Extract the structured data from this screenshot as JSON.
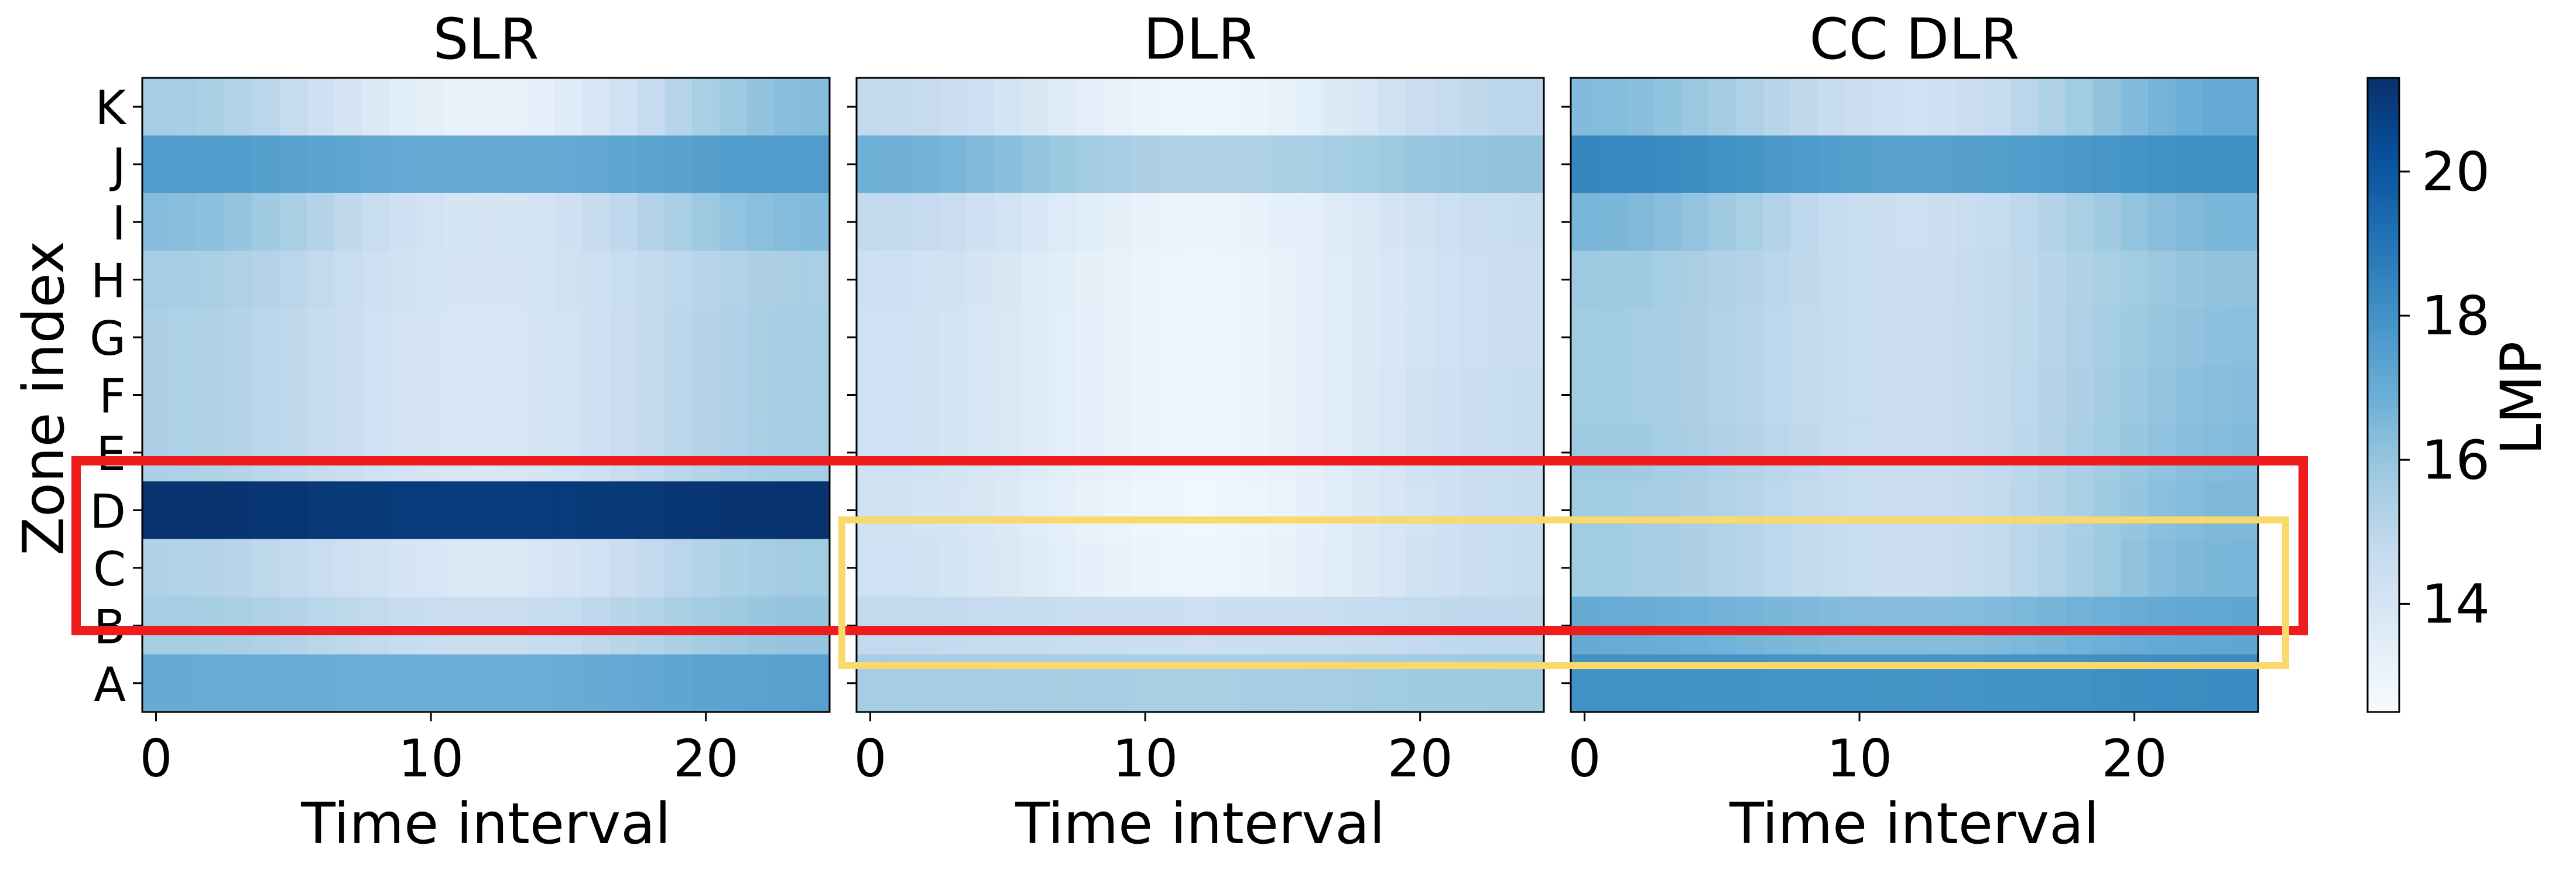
{
  "figure": {
    "ylabel": "Zone index",
    "zones": [
      "A",
      "B",
      "C",
      "D",
      "E",
      "F",
      "G",
      "H",
      "I",
      "J",
      "K"
    ],
    "xticks": [
      0,
      10,
      20
    ],
    "colorbar": {
      "label": "LMP",
      "ticks": [
        14,
        16,
        18,
        20
      ],
      "range": [
        12.5,
        21.3
      ]
    },
    "colors": {
      "red_box": "#ee1c1c",
      "yellow_box": "#f9d86c"
    }
  },
  "chart_data": [
    {
      "type": "heatmap",
      "title": "SLR",
      "xlabel": "Time interval",
      "ylabel": "Zone index",
      "x": [
        0,
        1,
        2,
        3,
        4,
        5,
        6,
        7,
        8,
        9,
        10,
        11,
        12,
        13,
        14,
        15,
        16,
        17,
        18,
        19,
        20,
        21,
        22,
        23,
        24
      ],
      "y": [
        "A",
        "B",
        "C",
        "D",
        "E",
        "F",
        "G",
        "H",
        "I",
        "J",
        "K"
      ],
      "zone_profiles": {
        "K": {
          "start": 15.6,
          "mid": 13.1,
          "end": 16.3
        },
        "J": {
          "start": 17.6,
          "mid": 17.0,
          "end": 17.6
        },
        "I": {
          "start": 16.3,
          "mid": 14.0,
          "end": 16.4
        },
        "H": {
          "start": 15.6,
          "mid": 14.0,
          "end": 15.5
        },
        "G": {
          "start": 15.4,
          "mid": 13.9,
          "end": 15.6
        },
        "F": {
          "start": 15.4,
          "mid": 13.9,
          "end": 15.6
        },
        "E": {
          "start": 15.4,
          "mid": 13.9,
          "end": 15.6
        },
        "D": {
          "start": 21.2,
          "mid": 20.9,
          "end": 21.2
        },
        "C": {
          "start": 15.3,
          "mid": 13.8,
          "end": 15.7
        },
        "B": {
          "start": 15.6,
          "mid": 14.5,
          "end": 16.0
        },
        "A": {
          "start": 17.0,
          "mid": 16.9,
          "end": 17.4
        }
      },
      "xlim": [
        -0.5,
        24.5
      ],
      "colorbar": "LMP"
    },
    {
      "type": "heatmap",
      "title": "DLR",
      "xlabel": "Time interval",
      "x": [
        0,
        1,
        2,
        3,
        4,
        5,
        6,
        7,
        8,
        9,
        10,
        11,
        12,
        13,
        14,
        15,
        16,
        17,
        18,
        19,
        20,
        21,
        22,
        23,
        24
      ],
      "y": [
        "A",
        "B",
        "C",
        "D",
        "E",
        "F",
        "G",
        "H",
        "I",
        "J",
        "K"
      ],
      "zone_profiles": {
        "K": {
          "start": 14.8,
          "mid": 12.9,
          "end": 15.0
        },
        "J": {
          "start": 16.8,
          "mid": 15.3,
          "end": 16.1
        },
        "I": {
          "start": 14.8,
          "mid": 13.0,
          "end": 14.6
        },
        "H": {
          "start": 14.4,
          "mid": 12.9,
          "end": 14.5
        },
        "G": {
          "start": 14.3,
          "mid": 12.9,
          "end": 14.5
        },
        "F": {
          "start": 14.3,
          "mid": 12.9,
          "end": 14.6
        },
        "E": {
          "start": 14.3,
          "mid": 12.9,
          "end": 14.6
        },
        "D": {
          "start": 14.2,
          "mid": 12.8,
          "end": 14.6
        },
        "C": {
          "start": 14.3,
          "mid": 12.9,
          "end": 14.6
        },
        "B": {
          "start": 14.8,
          "mid": 14.4,
          "end": 14.9
        },
        "A": {
          "start": 15.6,
          "mid": 15.5,
          "end": 15.8
        }
      },
      "xlim": [
        -0.5,
        24.5
      ]
    },
    {
      "type": "heatmap",
      "title": "CC DLR",
      "xlabel": "Time interval",
      "x": [
        0,
        1,
        2,
        3,
        4,
        5,
        6,
        7,
        8,
        9,
        10,
        11,
        12,
        13,
        14,
        15,
        16,
        17,
        18,
        19,
        20,
        21,
        22,
        23,
        24
      ],
      "y": [
        "A",
        "B",
        "C",
        "D",
        "E",
        "F",
        "G",
        "H",
        "I",
        "J",
        "K"
      ],
      "zone_profiles": {
        "K": {
          "start": 16.4,
          "mid": 14.3,
          "end": 17.1
        },
        "J": {
          "start": 18.4,
          "mid": 17.4,
          "end": 18.1
        },
        "I": {
          "start": 16.6,
          "mid": 14.4,
          "end": 16.6
        },
        "H": {
          "start": 15.8,
          "mid": 14.5,
          "end": 16.1
        },
        "G": {
          "start": 15.7,
          "mid": 14.5,
          "end": 16.2
        },
        "F": {
          "start": 15.7,
          "mid": 14.5,
          "end": 16.3
        },
        "E": {
          "start": 15.8,
          "mid": 14.5,
          "end": 16.4
        },
        "D": {
          "start": 15.7,
          "mid": 14.5,
          "end": 16.5
        },
        "C": {
          "start": 15.7,
          "mid": 14.5,
          "end": 16.6
        },
        "B": {
          "start": 17.0,
          "mid": 16.3,
          "end": 17.2
        },
        "A": {
          "start": 18.0,
          "mid": 17.9,
          "end": 18.2
        }
      },
      "xlim": [
        -0.5,
        24.5
      ]
    }
  ]
}
